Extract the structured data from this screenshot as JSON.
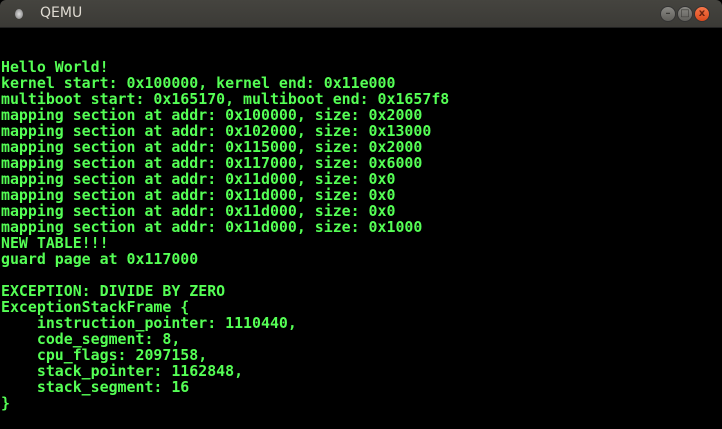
{
  "window": {
    "title": "QEMU",
    "buttons": {
      "minimize": "–",
      "maximize": "□",
      "close": "x"
    }
  },
  "console": {
    "lines": [
      "Hello World!",
      "kernel start: 0x100000, kernel end: 0x11e000",
      "multiboot start: 0x165170, multiboot end: 0x1657f8",
      "mapping section at addr: 0x100000, size: 0x2000",
      "mapping section at addr: 0x102000, size: 0x13000",
      "mapping section at addr: 0x115000, size: 0x2000",
      "mapping section at addr: 0x117000, size: 0x6000",
      "mapping section at addr: 0x11d000, size: 0x0",
      "mapping section at addr: 0x11d000, size: 0x0",
      "mapping section at addr: 0x11d000, size: 0x0",
      "mapping section at addr: 0x11d000, size: 0x1000",
      "NEW TABLE!!!",
      "guard page at 0x117000",
      "",
      "EXCEPTION: DIVIDE BY ZERO",
      "ExceptionStackFrame {",
      "    instruction_pointer: 1110440,",
      "    code_segment: 8,",
      "    cpu_flags: 2097158,",
      "    stack_pointer: 1162848,",
      "    stack_segment: 16",
      "}"
    ],
    "text_color": "#55ff55",
    "background": "#000000"
  }
}
